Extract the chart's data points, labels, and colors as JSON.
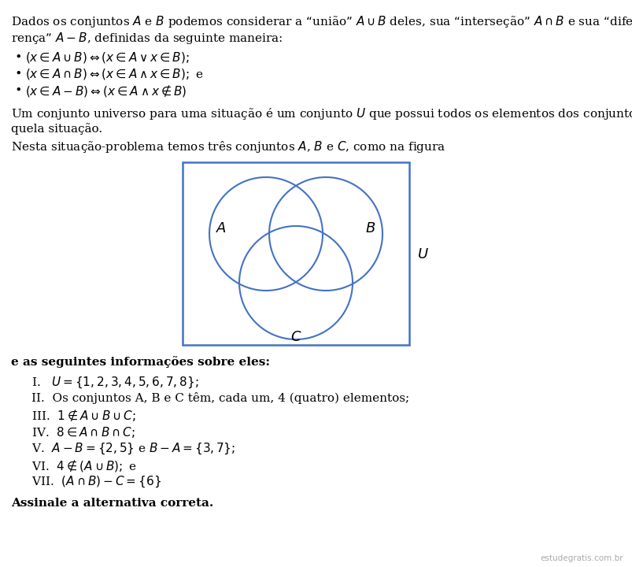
{
  "bg_color": "#ffffff",
  "text_color": "#000000",
  "venn_color": "#4472c4",
  "line1": "Dados os conjuntos $A$ e $B$ podemos considerar a “união” $A \\cup B$ deles, sua “interseção” $A \\cap B$ e sua “dife-",
  "line2": "rença” $A - B$, definidas da seguinte maneira:",
  "bullet1": "$(x \\in A \\cup B) \\Leftrightarrow (x \\in A \\vee x \\in B);$",
  "bullet2": "$(x \\in A \\cap B) \\Leftrightarrow (x \\in A \\wedge x \\in B);$ e",
  "bullet3": "$(x \\in A - B) \\Leftrightarrow (x \\in A \\wedge x \\notin B)$",
  "para2a": "Um conjunto universo para uma situação é um conjunto $U$ que possui todos os elementos dos conjuntos da-",
  "para2b": "quela situação.",
  "para3": "Nesta situação-problema temos três conjuntos $A$, $B$ e $C$, como na figura",
  "info_header": "e as seguintes informações sobre eles:",
  "item1": "I.   $U = \\{1, 2, 3, 4, 5, 6, 7, 8\\};$",
  "item2": "II.  Os conjuntos A, B e C têm, cada um, 4 (quatro) elementos;",
  "item3": "III.  $1 \\notin A \\cup B \\cup C;$",
  "item4": "IV.  $8 \\in A \\cap B \\cap C;$",
  "item5": "V.  $A - B = \\{2, 5\\}$ e $B - A = \\{3, 7\\};$",
  "item6": "VI.  $4 \\notin (A \\cup B);$ e",
  "item7": "VII.  $(A \\cap B) - C = \\{6\\}$",
  "footer": "Assinale a alternativa correta.",
  "watermark": "estudegratis.com.br"
}
